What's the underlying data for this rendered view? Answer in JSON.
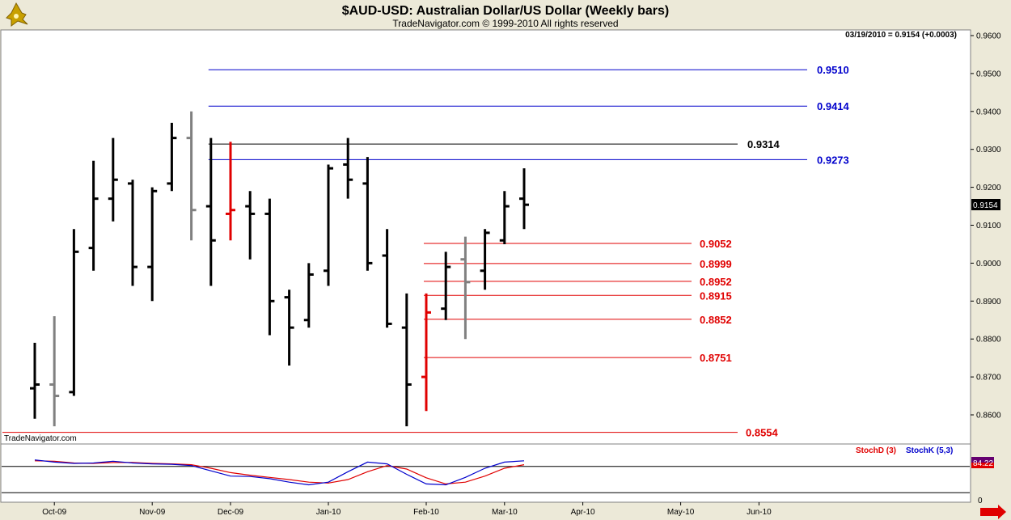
{
  "title": "$AUD-USD:  Australian Dollar/US Dollar  (Weekly bars)",
  "subtitle": "TradeNavigator.com © 1999-2010 All rights reserved",
  "quote": "03/19/2010 = 0.9154 (+0.0003)",
  "watermark": "TradeNavigator.com",
  "last_price": "0.9154",
  "stoch_value": "84.22",
  "stoch_zero": "0",
  "stoch_labels": {
    "d": "StochD (3)",
    "k": "StochK (5,3)"
  },
  "colors": {
    "black": "#000000",
    "gray": "#808080",
    "red": "#e00000",
    "blue": "#0000cc",
    "green": "#00cc00"
  },
  "chart_data": {
    "type": "bar",
    "chart_kind": "OHLC weekly price bars with horizontal level lines and stochastic sub-panel",
    "ylim": [
      0.855,
      0.965
    ],
    "y_ticks": [
      "0.9600",
      "0.9500",
      "0.9400",
      "0.9300",
      "0.9200",
      "0.9100",
      "0.9000",
      "0.8900",
      "0.8800",
      "0.8700",
      "0.8600"
    ],
    "x_labels": [
      {
        "label": "Oct-09",
        "week": 1
      },
      {
        "label": "Nov-09",
        "week": 6
      },
      {
        "label": "Dec-09",
        "week": 10
      },
      {
        "label": "Jan-10",
        "week": 15
      },
      {
        "label": "Feb-10",
        "week": 20
      },
      {
        "label": "Mar-10",
        "week": 24
      },
      {
        "label": "Apr-10",
        "week": 28
      },
      {
        "label": "May-10",
        "week": 33
      },
      {
        "label": "Jun-10",
        "week": 37
      }
    ],
    "bars": [
      {
        "o": 0.867,
        "h": 0.879,
        "l": 0.859,
        "c": 0.868,
        "color": "black"
      },
      {
        "o": 0.868,
        "h": 0.886,
        "l": 0.857,
        "c": 0.865,
        "color": "gray"
      },
      {
        "o": 0.866,
        "h": 0.909,
        "l": 0.865,
        "c": 0.903,
        "color": "black"
      },
      {
        "o": 0.904,
        "h": 0.927,
        "l": 0.898,
        "c": 0.917,
        "color": "black"
      },
      {
        "o": 0.917,
        "h": 0.933,
        "l": 0.911,
        "c": 0.922,
        "color": "black"
      },
      {
        "o": 0.921,
        "h": 0.922,
        "l": 0.894,
        "c": 0.899,
        "color": "black"
      },
      {
        "o": 0.899,
        "h": 0.92,
        "l": 0.89,
        "c": 0.919,
        "color": "black"
      },
      {
        "o": 0.921,
        "h": 0.937,
        "l": 0.919,
        "c": 0.933,
        "color": "black"
      },
      {
        "o": 0.933,
        "h": 0.94,
        "l": 0.906,
        "c": 0.914,
        "color": "gray"
      },
      {
        "o": 0.915,
        "h": 0.933,
        "l": 0.894,
        "c": 0.906,
        "color": "black"
      },
      {
        "o": 0.913,
        "h": 0.932,
        "l": 0.906,
        "c": 0.914,
        "color": "red"
      },
      {
        "o": 0.915,
        "h": 0.919,
        "l": 0.901,
        "c": 0.913,
        "color": "black"
      },
      {
        "o": 0.913,
        "h": 0.917,
        "l": 0.881,
        "c": 0.89,
        "color": "black"
      },
      {
        "o": 0.891,
        "h": 0.893,
        "l": 0.873,
        "c": 0.883,
        "color": "black"
      },
      {
        "o": 0.885,
        "h": 0.9,
        "l": 0.883,
        "c": 0.897,
        "color": "black"
      },
      {
        "o": 0.898,
        "h": 0.926,
        "l": 0.894,
        "c": 0.925,
        "color": "black"
      },
      {
        "o": 0.926,
        "h": 0.933,
        "l": 0.917,
        "c": 0.922,
        "color": "black"
      },
      {
        "o": 0.921,
        "h": 0.928,
        "l": 0.898,
        "c": 0.9,
        "color": "black"
      },
      {
        "o": 0.902,
        "h": 0.909,
        "l": 0.883,
        "c": 0.884,
        "color": "black"
      },
      {
        "o": 0.883,
        "h": 0.892,
        "l": 0.857,
        "c": 0.868,
        "color": "black"
      },
      {
        "o": 0.87,
        "h": 0.892,
        "l": 0.861,
        "c": 0.887,
        "color": "red"
      },
      {
        "o": 0.888,
        "h": 0.903,
        "l": 0.885,
        "c": 0.899,
        "color": "black"
      },
      {
        "o": 0.901,
        "h": 0.907,
        "l": 0.88,
        "c": 0.895,
        "color": "gray"
      },
      {
        "o": 0.898,
        "h": 0.909,
        "l": 0.893,
        "c": 0.908,
        "color": "black"
      },
      {
        "o": 0.906,
        "h": 0.919,
        "l": 0.905,
        "c": 0.915,
        "color": "black"
      },
      {
        "o": 0.917,
        "h": 0.925,
        "l": 0.909,
        "c": 0.9154,
        "color": "black"
      }
    ],
    "levels": [
      {
        "value": 0.951,
        "label": "0.9510",
        "color": "blue",
        "from_week": 9
      },
      {
        "value": 0.9414,
        "label": "0.9414",
        "color": "blue",
        "from_week": 9
      },
      {
        "value": 0.9314,
        "label": "0.9314",
        "color": "black",
        "from_week": 9
      },
      {
        "value": 0.9273,
        "label": "0.9273",
        "color": "blue",
        "from_week": 9
      },
      {
        "value": 0.9052,
        "label": "0.9052",
        "color": "red",
        "from_week": 20
      },
      {
        "value": 0.8999,
        "label": "0.8999",
        "color": "red",
        "from_week": 20
      },
      {
        "value": 0.8952,
        "label": "0.8952",
        "color": "red",
        "from_week": 20
      },
      {
        "value": 0.8915,
        "label": "0.8915",
        "color": "red",
        "from_week": 20
      },
      {
        "value": 0.8852,
        "label": "0.8852",
        "color": "red",
        "from_week": 20
      },
      {
        "value": 0.8751,
        "label": "0.8751",
        "color": "red",
        "from_week": 20
      },
      {
        "value": 0.8554,
        "label": "0.8554",
        "color": "red",
        "from_week": 0
      }
    ],
    "stochastic": {
      "ylim": [
        0,
        100
      ],
      "ref_lines": [
        80,
        20
      ],
      "k": [
        95,
        90,
        87,
        88,
        92,
        88,
        86,
        85,
        82,
        70,
        58,
        57,
        52,
        44,
        38,
        44,
        68,
        90,
        86,
        62,
        40,
        38,
        55,
        76,
        90,
        93
      ],
      "d": [
        93,
        92,
        88,
        87,
        89,
        89,
        87,
        86,
        84,
        76,
        66,
        60,
        55,
        50,
        44,
        42,
        50,
        68,
        82,
        74,
        54,
        40,
        44,
        58,
        76,
        84
      ]
    }
  }
}
